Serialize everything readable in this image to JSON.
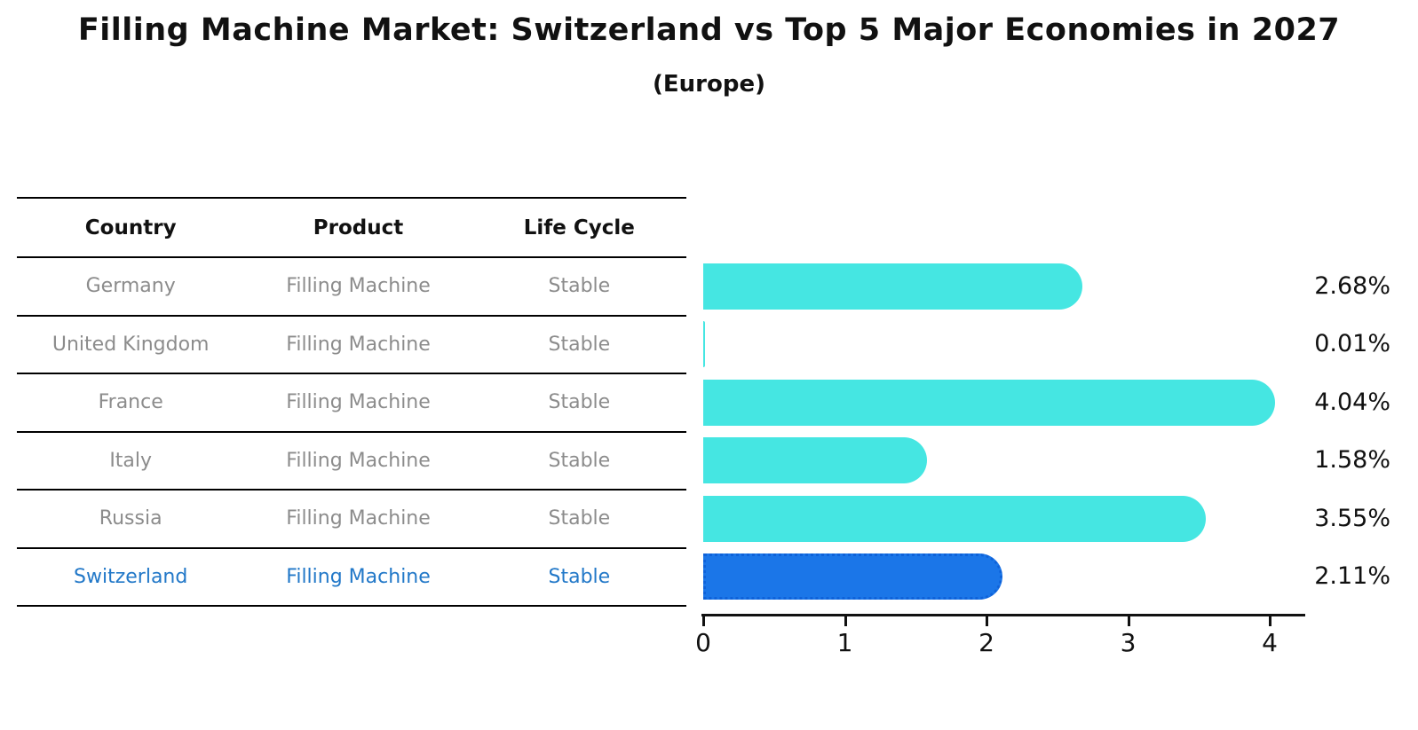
{
  "title": "Filling Machine Market: Switzerland vs Top 5 Major Economies in 2027",
  "subtitle": "(Europe)",
  "table": {
    "headers": {
      "country": "Country",
      "product": "Product",
      "life_cycle": "Life Cycle"
    },
    "rows": [
      {
        "country": "Germany",
        "product": "Filling Machine",
        "life_cycle": "Stable",
        "highlight": false
      },
      {
        "country": "United Kingdom",
        "product": "Filling Machine",
        "life_cycle": "Stable",
        "highlight": false
      },
      {
        "country": "France",
        "product": "Filling Machine",
        "life_cycle": "Stable",
        "highlight": false
      },
      {
        "country": "Italy",
        "product": "Filling Machine",
        "life_cycle": "Stable",
        "highlight": false
      },
      {
        "country": "Russia",
        "product": "Filling Machine",
        "life_cycle": "Stable",
        "highlight": true
      }
    ]
  },
  "table_last_row": {
    "country": "Switzerland",
    "product": "Filling Machine",
    "life_cycle": "Stable"
  },
  "chart_data": {
    "type": "bar",
    "orientation": "horizontal",
    "title": "Filling Machine Market: Switzerland vs Top 5 Major Economies in 2027 (Europe)",
    "categories": [
      "Germany",
      "United Kingdom",
      "France",
      "Italy",
      "Russia",
      "Switzerland"
    ],
    "values": [
      2.68,
      0.01,
      4.04,
      1.58,
      3.55,
      2.11
    ],
    "value_labels": [
      "2.68%",
      "0.01%",
      "4.04%",
      "1.58%",
      "3.55%",
      "2.11%"
    ],
    "x_ticks": [
      0,
      1,
      2,
      3,
      4
    ],
    "xlim": [
      0,
      4.26
    ],
    "grid": false,
    "legend": false,
    "highlight_index": 5,
    "bar_color": "#45e6e2",
    "highlight_color": "#1b76e8",
    "highlight_text_color": "#2278c8"
  }
}
